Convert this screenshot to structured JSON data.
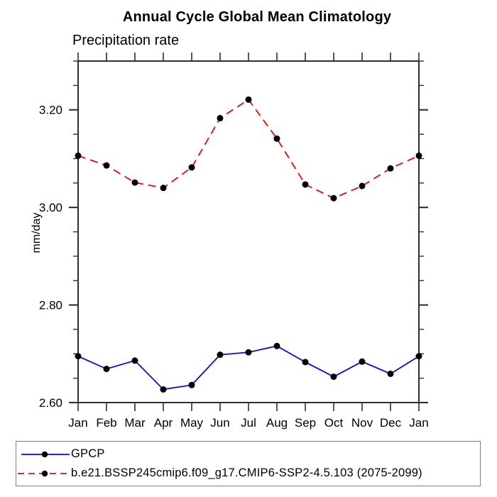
{
  "header": {
    "title": "Annual Cycle Global Mean Climatology",
    "subtitle": "Precipitation rate"
  },
  "chart_data": {
    "type": "line",
    "title": "Annual Cycle Global Mean Climatology",
    "subtitle": "Precipitation rate",
    "xlabel": "",
    "ylabel": "mm/day",
    "categories": [
      "Jan",
      "Feb",
      "Mar",
      "Apr",
      "May",
      "Jun",
      "Jul",
      "Aug",
      "Sep",
      "Oct",
      "Nov",
      "Dec",
      "Jan"
    ],
    "ylim": [
      2.6,
      3.3
    ],
    "y_major_ticks": [
      2.6,
      2.8,
      3.0,
      3.2
    ],
    "y_tick_labels": [
      "2.60",
      "2.80",
      "3.00",
      "3.20"
    ],
    "y_minor_step": 0.05,
    "grid": false,
    "marker": "filled-circle",
    "marker_color": "#000000",
    "frame_color": "#2f2f2f",
    "legend_position": "bottom-left",
    "series": [
      {
        "name": "GPCP",
        "style": "solid",
        "color": "#0a0ae0",
        "values": [
          2.695,
          2.669,
          2.686,
          2.627,
          2.636,
          2.698,
          2.703,
          2.716,
          2.683,
          2.653,
          2.684,
          2.659,
          2.695
        ]
      },
      {
        "name": "b.e21.BSSP245cmip6.f09_g17.CMIP6-SSP2-4.5.103 (2075-2099)",
        "style": "dashed",
        "color": "#f40000",
        "values": [
          3.106,
          3.086,
          3.051,
          3.04,
          3.082,
          3.183,
          3.221,
          3.141,
          3.047,
          3.019,
          3.044,
          3.08,
          3.106
        ]
      }
    ]
  }
}
